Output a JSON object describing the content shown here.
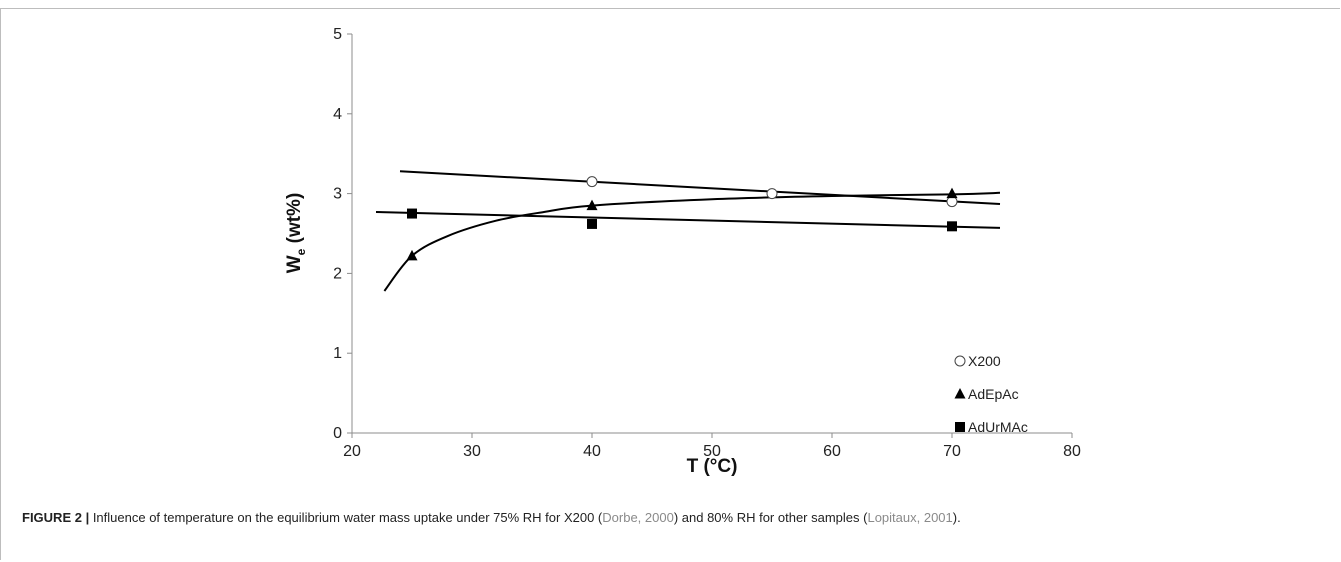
{
  "chart_data": {
    "type": "scatter",
    "title": "",
    "xlabel": "T (°C)",
    "ylabel_main": "W",
    "ylabel_sub": "e",
    "ylabel_unit": " (wt%)",
    "xlim": [
      20,
      80
    ],
    "ylim": [
      0,
      5
    ],
    "xticks": [
      20,
      30,
      40,
      50,
      60,
      70,
      80
    ],
    "yticks": [
      0,
      1,
      2,
      3,
      4,
      5
    ],
    "grid": false,
    "legend_position": "bottom-right",
    "series": [
      {
        "name": "X200",
        "marker": "open-circle",
        "x": [
          40,
          55,
          70
        ],
        "y": [
          3.15,
          3.0,
          2.9
        ],
        "fit": {
          "kind": "linear",
          "x": [
            24,
            74
          ],
          "y": [
            3.28,
            2.87
          ]
        }
      },
      {
        "name": "AdEpAc",
        "marker": "filled-triangle",
        "x": [
          25,
          40,
          70
        ],
        "y": [
          2.22,
          2.85,
          3.0
        ],
        "fit": {
          "kind": "curve",
          "x": [
            22.7,
            25,
            28,
            32,
            36,
            40,
            50,
            60,
            70,
            74
          ],
          "y": [
            1.78,
            2.22,
            2.47,
            2.66,
            2.77,
            2.85,
            2.93,
            2.97,
            2.99,
            3.01
          ]
        }
      },
      {
        "name": "AdUrMAc",
        "marker": "filled-square",
        "x": [
          25,
          40,
          70
        ],
        "y": [
          2.75,
          2.62,
          2.59
        ],
        "fit": {
          "kind": "linear",
          "x": [
            22,
            74
          ],
          "y": [
            2.77,
            2.57
          ]
        }
      }
    ]
  },
  "caption": {
    "label": "FIGURE 2 |",
    "text_1": " Influence of temperature on the equilibrium water mass uptake under 75% RH for X200 (",
    "ref_1": "Dorbe, 2000",
    "text_2": ") and 80% RH for other samples (",
    "ref_2": "Lopitaux, 2001",
    "text_3": ")."
  }
}
